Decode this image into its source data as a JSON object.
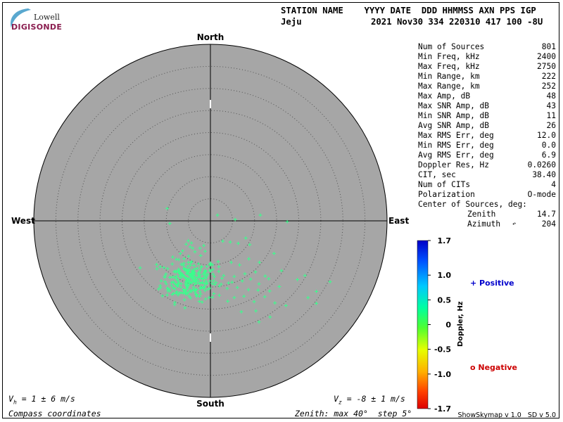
{
  "logo": {
    "top": "Lowell",
    "bottom": "DIGISONDE"
  },
  "header": {
    "row1": "STATION NAME    YYYY DATE  DDD HHMMSS AXN PPS IGP",
    "station": "Jeju",
    "row2": "2021 Nov30 334 220310 417 100 -8U"
  },
  "stats": [
    {
      "label": "Num of Sources",
      "value": "801"
    },
    {
      "label": "Min Freq, kHz",
      "value": "2400"
    },
    {
      "label": "Max Freq, kHz",
      "value": "2750"
    },
    {
      "label": "Min Range, km",
      "value": "222"
    },
    {
      "label": "Max Range, km",
      "value": "252"
    },
    {
      "label": "Max Amp, dB",
      "value": "48"
    },
    {
      "label": "Max SNR Amp, dB",
      "value": "43"
    },
    {
      "label": "Min SNR Amp, dB",
      "value": "11"
    },
    {
      "label": "Avg SNR Amp, dB",
      "value": "26"
    },
    {
      "label": "Max RMS Err, deg",
      "value": "12.0"
    },
    {
      "label": "Min RMS Err, deg",
      "value": "0.0"
    },
    {
      "label": "Avg RMS Err, deg",
      "value": "6.9"
    },
    {
      "label": "Doppler Res, Hz",
      "value": "0.0260"
    },
    {
      "label": "CIT, sec",
      "value": "38.40"
    },
    {
      "label": "Num of CITs",
      "value": "4"
    },
    {
      "label": "Polarization",
      "value": "O-mode"
    },
    {
      "label": "Center of Sources, deg:",
      "value": ""
    }
  ],
  "center": {
    "zenith_label": "Zenith",
    "zenith_value": "14.7",
    "azimuth_label": "Azimuth",
    "azimuth_value": "204"
  },
  "colors": {
    "dish": "#a6a6a6",
    "points": "#39ff8c",
    "positive": "#0000cc",
    "negative": "#cc0000"
  },
  "legend": {
    "positive_label": "+ Positive",
    "negative_label": "o Negative",
    "colorbar_title": "Doppler, Hz"
  },
  "footer": {
    "vh": "V",
    "vh_sub": "h",
    "vh_rest": " = 1 ± 6 m/s",
    "vz": "V",
    "vz_sub": "z",
    "vz_rest": " = -8 ± 1 m/s",
    "compass": "Compass coordinates",
    "zenith": "Zenith: max 40°  step 5°",
    "version": "ShowSkymap v 1.0   SD v 5.0"
  },
  "chart_data": {
    "type": "scatter",
    "projection": "polar skymap",
    "directions": {
      "north": "North",
      "south": "South",
      "east": "East",
      "west": "West"
    },
    "zenith_max_deg": 40,
    "zenith_step_deg": 5,
    "colorbar": {
      "ticks": [
        "1.7",
        "1.0",
        "0.5",
        "0",
        "-0.5",
        "-1.0",
        "-1.7"
      ],
      "values": [
        1.7,
        1.0,
        0.5,
        0,
        -0.5,
        -1.0,
        -1.7
      ],
      "range": [
        -1.7,
        1.7
      ]
    },
    "cluster": {
      "zenith_deg": 14.7,
      "azimuth_deg": 204,
      "color": "#39ff8c"
    },
    "approx_points_east_north_deg": [
      [
        -9.8,
        2.8
      ],
      [
        -9.2,
        -0.6
      ],
      [
        1.6,
        1.3
      ],
      [
        5.6,
        0.3
      ],
      [
        11.3,
        1.3
      ],
      [
        17.4,
        -0.2
      ],
      [
        -5.0,
        -4.5
      ],
      [
        -4.3,
        -5.0
      ],
      [
        -5.5,
        -5.3
      ],
      [
        -4.6,
        -5.9
      ],
      [
        -6.3,
        -6.8
      ],
      [
        -4.0,
        -6.2
      ],
      [
        -3.5,
        -7.0
      ],
      [
        -2.4,
        -6.2
      ],
      [
        -1.5,
        -5.6
      ],
      [
        -1.2,
        -6.9
      ],
      [
        2.8,
        -4.6
      ],
      [
        4.5,
        -4.8
      ],
      [
        6.3,
        -5.1
      ],
      [
        8.0,
        -3.9
      ],
      [
        8.9,
        -5.4
      ],
      [
        -6.0,
        -9.6
      ],
      [
        -3.7,
        -10.1
      ],
      [
        -2.1,
        -10.5
      ],
      [
        0.0,
        -9.6
      ],
      [
        1.9,
        -10.4
      ],
      [
        4.7,
        -9.4
      ],
      [
        6.6,
        -10.0
      ],
      [
        8.7,
        -8.6
      ],
      [
        11.1,
        -9.4
      ],
      [
        14.4,
        -7.4
      ],
      [
        -1.0,
        -11.4
      ],
      [
        0.6,
        -12.1
      ],
      [
        3.0,
        -12.4
      ],
      [
        5.4,
        -12.6
      ],
      [
        7.8,
        -12.0
      ],
      [
        10.2,
        -11.6
      ],
      [
        12.4,
        -12.5
      ],
      [
        2.6,
        -13.0
      ],
      [
        4.9,
        -13.9
      ],
      [
        7.2,
        -13.6
      ],
      [
        9.1,
        -13.2
      ],
      [
        11.0,
        -14.3
      ],
      [
        13.2,
        -13.1
      ],
      [
        0.4,
        -14.2
      ],
      [
        3.8,
        -15.3
      ],
      [
        6.1,
        -15.1
      ],
      [
        8.6,
        -15.6
      ],
      [
        10.8,
        -15.7
      ],
      [
        13.4,
        -15.9
      ],
      [
        15.6,
        -14.9
      ],
      [
        5.4,
        -17.4
      ],
      [
        7.6,
        -17.1
      ],
      [
        9.9,
        -18.3
      ],
      [
        12.3,
        -17.2
      ],
      [
        14.6,
        -18.6
      ],
      [
        -3.1,
        -17.1
      ],
      [
        -0.3,
        -17.4
      ],
      [
        2.0,
        -16.9
      ],
      [
        -5.2,
        -14.3
      ],
      [
        -6.7,
        -11.8
      ],
      [
        -7.7,
        -8.7
      ],
      [
        19.7,
        -13.3
      ],
      [
        22.1,
        -17.4
      ],
      [
        24.0,
        -16.0
      ],
      [
        27.1,
        -13.8
      ],
      [
        21.4,
        -12.4
      ],
      [
        17.1,
        -19.2
      ],
      [
        -12.2,
        -9.9
      ],
      [
        -9.6,
        -15.9
      ],
      [
        10.3,
        -20.4
      ],
      [
        7.0,
        -20.6
      ],
      [
        13.5,
        -21.8
      ],
      [
        11.0,
        -22.9
      ],
      [
        24.0,
        -18.7
      ],
      [
        16.1,
        -11.3
      ]
    ]
  }
}
